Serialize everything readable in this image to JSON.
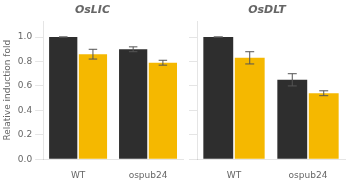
{
  "chart_data": [
    {
      "type": "bar",
      "title": "OsLIC",
      "ylabel": "Relative induction fold",
      "categories": [
        "WT",
        "ospub24"
      ],
      "series": [
        {
          "color": "#2e2e2e",
          "values": [
            1.0,
            0.9
          ],
          "errors": [
            0.0,
            0.02
          ]
        },
        {
          "color": "#f5b800",
          "values": [
            0.86,
            0.79
          ],
          "errors": [
            0.04,
            0.02
          ]
        }
      ],
      "ylim": [
        0,
        1.13
      ],
      "yticks": [
        {
          "value": 0,
          "label": "0.0"
        },
        0.2,
        0.4,
        0.6,
        0.8,
        {
          "value": 1.0,
          "label": "1.0"
        }
      ],
      "grid": false
    },
    {
      "type": "bar",
      "title": "OsDLT",
      "categories": [
        "WT",
        "ospub24"
      ],
      "series": [
        {
          "color": "#2e2e2e",
          "values": [
            1.0,
            0.65
          ],
          "errors": [
            0.0,
            0.05
          ]
        },
        {
          "color": "#f5b800",
          "values": [
            0.83,
            0.54
          ],
          "errors": [
            0.05,
            0.02
          ]
        }
      ],
      "ylim": [
        0,
        1.13
      ],
      "yticks": [
        0,
        0.2,
        0.4,
        0.6,
        0.8,
        1.0
      ],
      "grid": false,
      "tick_labels": "x"
    }
  ]
}
